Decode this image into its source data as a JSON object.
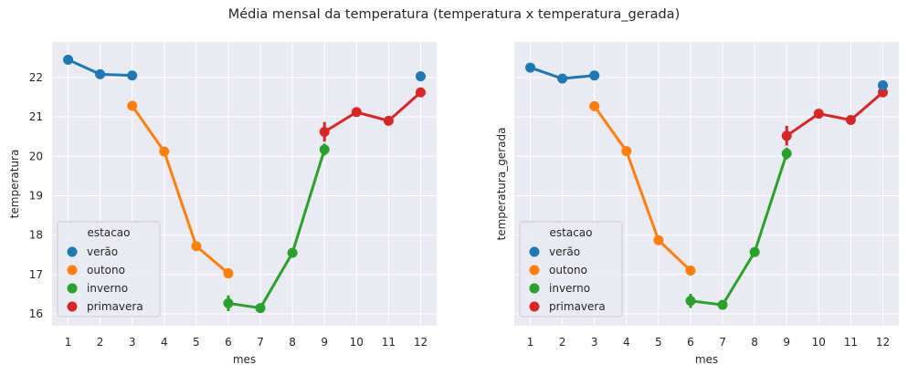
{
  "suptitle": "Média mensal da temperatura (temperatura x temperatura_gerada)",
  "colors": {
    "verao": "#1f77b4",
    "outono": "#ff7f0e",
    "inverno": "#2ca02c",
    "primavera": "#d62728",
    "axes_bg": "#eaeaf2",
    "grid": "#ffffff"
  },
  "chart_data": [
    {
      "type": "line",
      "xlabel": "mes",
      "ylabel": "temperatura",
      "categories": [
        "1",
        "2",
        "3",
        "4",
        "5",
        "6",
        "7",
        "8",
        "9",
        "10",
        "11",
        "12"
      ],
      "ylim": [
        15.7,
        22.9
      ],
      "yticks": [
        16,
        17,
        18,
        19,
        20,
        21,
        22
      ],
      "grid": true,
      "legend": {
        "title": "estacao",
        "placement": "lower-left"
      },
      "series": [
        {
          "name": "verão",
          "color_key": "verao",
          "x": [
            "1",
            "2",
            "3"
          ],
          "values": [
            22.45,
            22.08,
            22.05
          ],
          "err": [
            0.04,
            0.04,
            0.05
          ]
        },
        {
          "name": "outono",
          "color_key": "outono",
          "x": [
            "3",
            "4",
            "5",
            "6"
          ],
          "values": [
            21.28,
            20.12,
            17.72,
            17.03
          ],
          "err": [
            0.12,
            0.05,
            0.05,
            0.12
          ]
        },
        {
          "name": "inverno",
          "color_key": "inverno",
          "x": [
            "6",
            "7",
            "8",
            "9"
          ],
          "values": [
            16.27,
            16.15,
            17.55,
            20.17
          ],
          "err": [
            0.2,
            0.05,
            0.06,
            0.15
          ]
        },
        {
          "name": "primavera",
          "color_key": "primavera",
          "x": [
            "9",
            "10",
            "11",
            "12"
          ],
          "values": [
            20.62,
            21.12,
            20.9,
            21.62
          ],
          "err": [
            0.25,
            0.08,
            0.05,
            0.03
          ]
        },
        {
          "name": "verão",
          "color_key": "verao",
          "x": [
            "12"
          ],
          "values": [
            22.03
          ],
          "err": [
            0.12
          ],
          "legend": false
        }
      ]
    },
    {
      "type": "line",
      "xlabel": "mes",
      "ylabel": "temperatura_gerada",
      "categories": [
        "1",
        "2",
        "3",
        "4",
        "5",
        "6",
        "7",
        "8",
        "9",
        "10",
        "11",
        "12"
      ],
      "ylim": [
        15.7,
        22.9
      ],
      "yticks": [
        16,
        17,
        18,
        19,
        20,
        21,
        22
      ],
      "show_ytick_labels": false,
      "grid": true,
      "legend": {
        "title": "estacao",
        "placement": "lower-left"
      },
      "series": [
        {
          "name": "verão",
          "color_key": "verao",
          "x": [
            "1",
            "2",
            "3"
          ],
          "values": [
            22.25,
            21.97,
            22.05
          ],
          "err": [
            0.04,
            0.04,
            0.04
          ]
        },
        {
          "name": "outono",
          "color_key": "outono",
          "x": [
            "3",
            "4",
            "5",
            "6"
          ],
          "values": [
            21.27,
            20.13,
            17.87,
            17.1
          ],
          "err": [
            0.12,
            0.05,
            0.05,
            0.07
          ]
        },
        {
          "name": "inverno",
          "color_key": "inverno",
          "x": [
            "6",
            "7",
            "8",
            "9"
          ],
          "values": [
            16.33,
            16.23,
            17.57,
            20.07
          ],
          "err": [
            0.18,
            0.05,
            0.06,
            0.15
          ]
        },
        {
          "name": "primavera",
          "color_key": "primavera",
          "x": [
            "9",
            "10",
            "11",
            "12"
          ],
          "values": [
            20.52,
            21.08,
            20.92,
            21.62
          ],
          "err": [
            0.25,
            0.06,
            0.05,
            0.03
          ]
        },
        {
          "name": "verão",
          "color_key": "verao",
          "x": [
            "12"
          ],
          "values": [
            21.8
          ],
          "err": [
            0.12
          ],
          "legend": false
        }
      ]
    }
  ]
}
